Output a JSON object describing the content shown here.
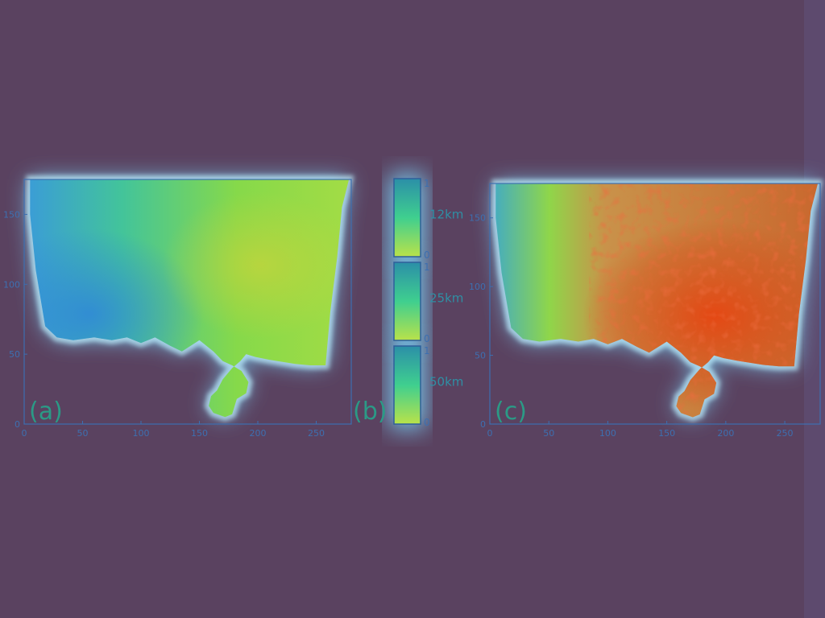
{
  "colors": {
    "background": "#5a4260",
    "axis": "#3d6fb0",
    "glow": "#7ad9ff"
  },
  "chart_data": [
    {
      "type": "heatmap",
      "panel_label": "(a)",
      "xlim": [
        0,
        280
      ],
      "ylim": [
        0,
        175
      ],
      "xticks": [
        "0",
        "50",
        "100",
        "150",
        "200",
        "250"
      ],
      "yticks": [
        "0",
        "50",
        "100",
        "150"
      ],
      "colormap": [
        "#3a9bd9",
        "#43c49a",
        "#8fe043",
        "#c8d33a"
      ],
      "summary": "low values west, higher values east"
    },
    {
      "type": "heatmap",
      "panel_label": "(b)",
      "colorbars": [
        {
          "name": "12km",
          "min": "0",
          "max": "1"
        },
        {
          "name": "25km",
          "min": "0",
          "max": "1"
        },
        {
          "name": "50km",
          "min": "0",
          "max": "1"
        }
      ]
    },
    {
      "type": "heatmap",
      "panel_label": "(c)",
      "xlim": [
        0,
        280
      ],
      "ylim": [
        0,
        175
      ],
      "xticks": [
        "0",
        "50",
        "100",
        "150",
        "200",
        "250"
      ],
      "yticks": [
        "0",
        "50",
        "100",
        "150"
      ],
      "colormap": [
        "#3a9bd9",
        "#8fe043",
        "#d6873e",
        "#e24a1c"
      ],
      "summary": "low values west, high red values center-east"
    }
  ]
}
